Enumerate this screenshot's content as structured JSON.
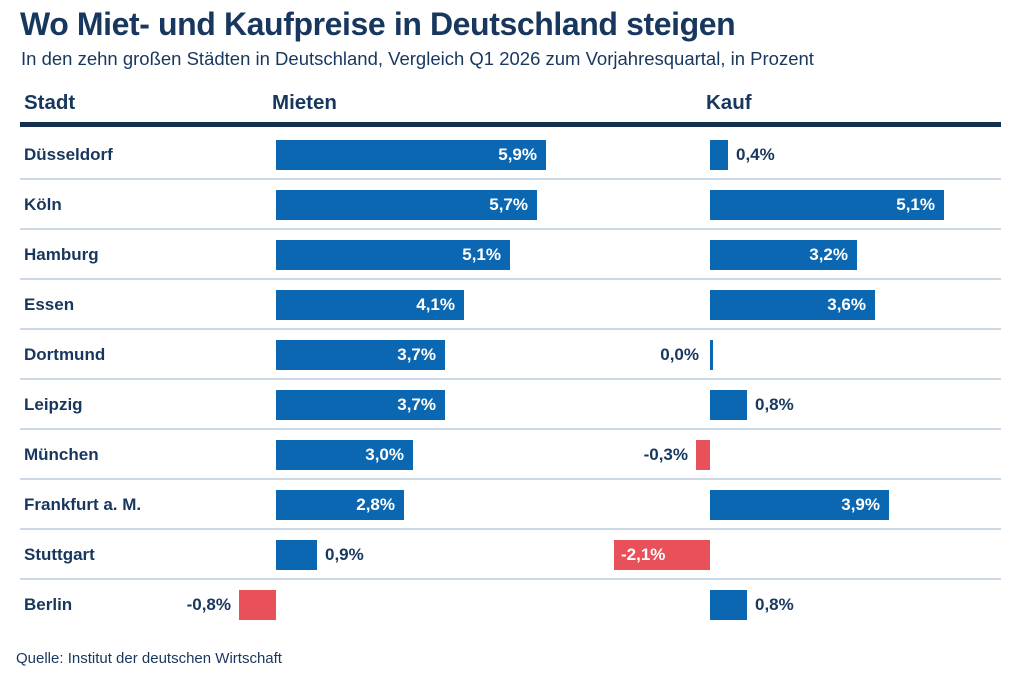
{
  "title": "Wo Miet- und Kaufpreise in Deutschland steigen",
  "subtitle": "In den zehn großen Städten in Deutschland, Vergleich Q1 2026 zum Vorjahresquartal, in Prozent",
  "source": "Quelle: Institut der deutschen Wirtschaft",
  "columns": {
    "city": "Stadt",
    "rent": "Mieten",
    "buy": "Kauf"
  },
  "colors": {
    "positive_bar": "#0b67b2",
    "negative_bar": "#e8505a",
    "text_navy": "#18375e",
    "header_rule": "#14304f",
    "row_separator": "#ccd8e3",
    "bar_label_inside": "#ffffff"
  },
  "chart_data": {
    "type": "bar",
    "orientation": "horizontal",
    "unit": "percent",
    "title": "Wo Miet- und Kaufpreise in Deutschland steigen",
    "subtitle": "In den zehn großen Städten in Deutschland, Vergleich Q1 2026 zum Vorjahresquartal, in Prozent",
    "categories": [
      "Düsseldorf",
      "Köln",
      "Hamburg",
      "Essen",
      "Dortmund",
      "Leipzig",
      "München",
      "Frankfurt a. M.",
      "Stuttgart",
      "Berlin"
    ],
    "series": [
      {
        "name": "Mieten",
        "values": [
          5.9,
          5.7,
          5.1,
          4.1,
          3.7,
          3.7,
          3.0,
          2.8,
          0.9,
          -0.8
        ],
        "labels": [
          "5,9%",
          "5,7%",
          "5,1%",
          "4,1%",
          "3,7%",
          "3,7%",
          "3,0%",
          "2,8%",
          "0,9%",
          "-0,8%"
        ]
      },
      {
        "name": "Kauf",
        "values": [
          0.4,
          5.1,
          3.2,
          3.6,
          0.0,
          0.8,
          -0.3,
          3.9,
          -2.1,
          0.8
        ],
        "labels": [
          "0,4%",
          "5,1%",
          "3,2%",
          "3,6%",
          "0,0%",
          "0,8%",
          "-0,3%",
          "3,9%",
          "-2,1%",
          "0,8%"
        ]
      }
    ],
    "xlim": [
      -2.5,
      6.3
    ],
    "grid": false,
    "legend_position": "column-headers"
  }
}
